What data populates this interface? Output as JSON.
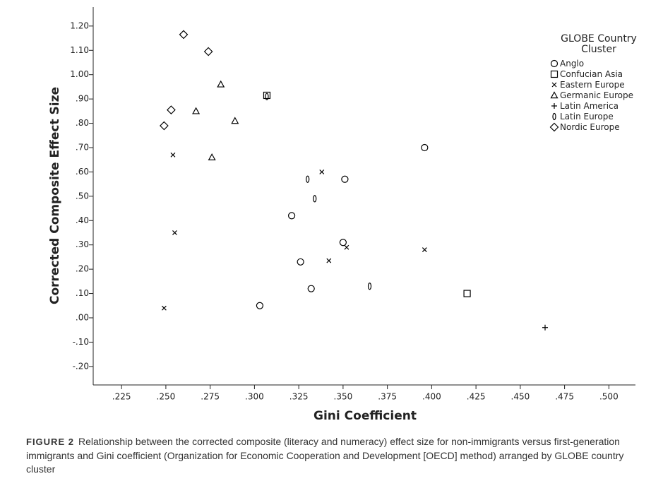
{
  "chart_data": {
    "type": "scatter",
    "xlabel": "Gini Coefficient",
    "ylabel": "Corrected Composite Effect Size",
    "legend_title": "GLOBE Country Cluster",
    "legend_position": "upper right",
    "grid": false,
    "xlim": [
      0.209,
      0.515
    ],
    "ylim": [
      -0.276,
      1.278
    ],
    "xticks": [
      {
        "value": 0.225,
        "label": ".225"
      },
      {
        "value": 0.25,
        "label": ".250"
      },
      {
        "value": 0.275,
        "label": ".275"
      },
      {
        "value": 0.3,
        "label": ".300"
      },
      {
        "value": 0.325,
        "label": ".325"
      },
      {
        "value": 0.35,
        "label": ".350"
      },
      {
        "value": 0.375,
        "label": ".375"
      },
      {
        "value": 0.4,
        "label": ".400"
      },
      {
        "value": 0.425,
        "label": ".425"
      },
      {
        "value": 0.45,
        "label": ".450"
      },
      {
        "value": 0.475,
        "label": ".475"
      },
      {
        "value": 0.5,
        "label": ".500"
      }
    ],
    "yticks": [
      {
        "value": 1.2,
        "label": "1.20"
      },
      {
        "value": 1.1,
        "label": "1.10"
      },
      {
        "value": 1.0,
        "label": "1.00"
      },
      {
        "value": 0.9,
        "label": ".90"
      },
      {
        "value": 0.8,
        "label": ".80"
      },
      {
        "value": 0.7,
        "label": ".70"
      },
      {
        "value": 0.6,
        "label": ".60"
      },
      {
        "value": 0.5,
        "label": ".50"
      },
      {
        "value": 0.4,
        "label": ".40"
      },
      {
        "value": 0.3,
        "label": ".30"
      },
      {
        "value": 0.2,
        "label": ".20"
      },
      {
        "value": 0.1,
        "label": ".10"
      },
      {
        "value": 0,
        "label": ".00"
      },
      {
        "value": -0.1,
        "label": "-.10"
      },
      {
        "value": -0.2,
        "label": "-.20"
      }
    ],
    "series": [
      {
        "name": "Anglo",
        "marker": "circle",
        "color": "#000000",
        "x": [
          0.396,
          0.351,
          0.321,
          0.35,
          0.326,
          0.332,
          0.303
        ],
        "values": [
          0.7,
          0.57,
          0.42,
          0.31,
          0.23,
          0.12,
          0.05
        ]
      },
      {
        "name": "Confucian Asia",
        "marker": "square",
        "color": "#000000",
        "x": [
          0.307,
          0.42
        ],
        "values": [
          0.915,
          0.1
        ]
      },
      {
        "name": "Eastern Europe",
        "marker": "x",
        "color": "#000000",
        "x": [
          0.254,
          0.338,
          0.255,
          0.352,
          0.342,
          0.396,
          0.249
        ],
        "values": [
          0.67,
          0.6,
          0.35,
          0.29,
          0.235,
          0.28,
          0.04
        ]
      },
      {
        "name": "Germanic Europe",
        "marker": "triangle",
        "color": "#000000",
        "x": [
          0.281,
          0.267,
          0.289,
          0.276
        ],
        "values": [
          0.96,
          0.85,
          0.81,
          0.66
        ]
      },
      {
        "name": "Latin America",
        "marker": "plus",
        "color": "#000000",
        "x": [
          0.464
        ],
        "values": [
          -0.04
        ]
      },
      {
        "name": "Latin Europe",
        "marker": "ellipse",
        "color": "#000000",
        "x": [
          0.307,
          0.33,
          0.334,
          0.365
        ],
        "values": [
          0.91,
          0.57,
          0.49,
          0.13
        ]
      },
      {
        "name": "Nordic Europe",
        "marker": "diamond",
        "color": "#000000",
        "x": [
          0.26,
          0.274,
          0.253,
          0.249
        ],
        "values": [
          1.165,
          1.095,
          0.855,
          0.79
        ]
      }
    ]
  },
  "caption": {
    "label": "FIGURE 2",
    "text": "Relationship between the corrected composite (literacy and numeracy) effect size for non-immigrants versus first-generation immigrants and Gini coefficient (Organization for Economic Cooperation and Development [OECD] method) arranged by GLOBE country cluster"
  }
}
